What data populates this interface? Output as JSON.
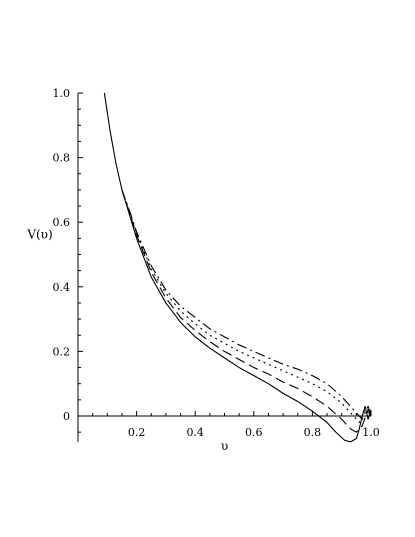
{
  "chart_data": {
    "type": "line",
    "title": "",
    "xlabel": "υ",
    "ylabel": "V(υ)",
    "xlim": [
      0.0,
      1.0
    ],
    "ylim": [
      -0.08,
      1.0
    ],
    "x_ticks": [
      "0.2",
      "0.4",
      "0.6",
      "0.8",
      "1.0"
    ],
    "y_ticks": [
      "0",
      "0.2",
      "0.4",
      "0.6",
      "0.8",
      "1.0"
    ],
    "x_tick_values": [
      0.2,
      0.4,
      0.6,
      0.8,
      1.0
    ],
    "y_tick_values": [
      0,
      0.2,
      0.4,
      0.6,
      0.8,
      1.0
    ],
    "grid": false,
    "legend": "none",
    "series": [
      {
        "style": "solid",
        "x": [
          0.09,
          0.11,
          0.13,
          0.15,
          0.18,
          0.2,
          0.25,
          0.3,
          0.35,
          0.4,
          0.45,
          0.5,
          0.55,
          0.6,
          0.65,
          0.7,
          0.75,
          0.8,
          0.85,
          0.88,
          0.91,
          0.93,
          0.95,
          0.96,
          0.97,
          0.98,
          0.99,
          1.0
        ],
        "y": [
          1.0,
          0.88,
          0.78,
          0.7,
          0.61,
          0.55,
          0.43,
          0.35,
          0.29,
          0.245,
          0.21,
          0.18,
          0.15,
          0.125,
          0.1,
          0.07,
          0.045,
          0.015,
          -0.02,
          -0.05,
          -0.075,
          -0.08,
          -0.07,
          -0.04,
          0.0,
          0.03,
          -0.01,
          0.02
        ]
      },
      {
        "style": "longdash",
        "x": [
          0.15,
          0.18,
          0.2,
          0.25,
          0.3,
          0.35,
          0.4,
          0.45,
          0.5,
          0.55,
          0.6,
          0.65,
          0.7,
          0.75,
          0.8,
          0.85,
          0.9,
          0.93,
          0.95,
          0.97,
          0.99,
          1.0
        ],
        "y": [
          0.7,
          0.615,
          0.56,
          0.445,
          0.365,
          0.305,
          0.265,
          0.23,
          0.2,
          0.175,
          0.15,
          0.13,
          0.105,
          0.085,
          0.06,
          0.03,
          -0.01,
          -0.04,
          -0.05,
          -0.03,
          0.02,
          0.0
        ]
      },
      {
        "style": "dotted",
        "x": [
          0.15,
          0.18,
          0.2,
          0.25,
          0.3,
          0.35,
          0.4,
          0.45,
          0.5,
          0.55,
          0.6,
          0.65,
          0.7,
          0.75,
          0.8,
          0.85,
          0.9,
          0.93,
          0.96,
          0.98,
          1.0
        ],
        "y": [
          0.7,
          0.62,
          0.565,
          0.455,
          0.38,
          0.325,
          0.285,
          0.25,
          0.225,
          0.2,
          0.18,
          0.16,
          0.14,
          0.12,
          0.1,
          0.075,
          0.04,
          0.01,
          -0.02,
          0.02,
          0.0
        ]
      },
      {
        "style": "dashdot",
        "x": [
          0.15,
          0.18,
          0.2,
          0.25,
          0.3,
          0.35,
          0.4,
          0.45,
          0.5,
          0.55,
          0.6,
          0.65,
          0.7,
          0.75,
          0.8,
          0.85,
          0.9,
          0.93,
          0.95,
          0.97,
          0.99,
          1.0
        ],
        "y": [
          0.7,
          0.625,
          0.57,
          0.465,
          0.39,
          0.34,
          0.305,
          0.27,
          0.245,
          0.22,
          0.2,
          0.18,
          0.16,
          0.145,
          0.125,
          0.1,
          0.06,
          0.03,
          0.01,
          -0.01,
          0.03,
          0.0
        ]
      }
    ]
  }
}
